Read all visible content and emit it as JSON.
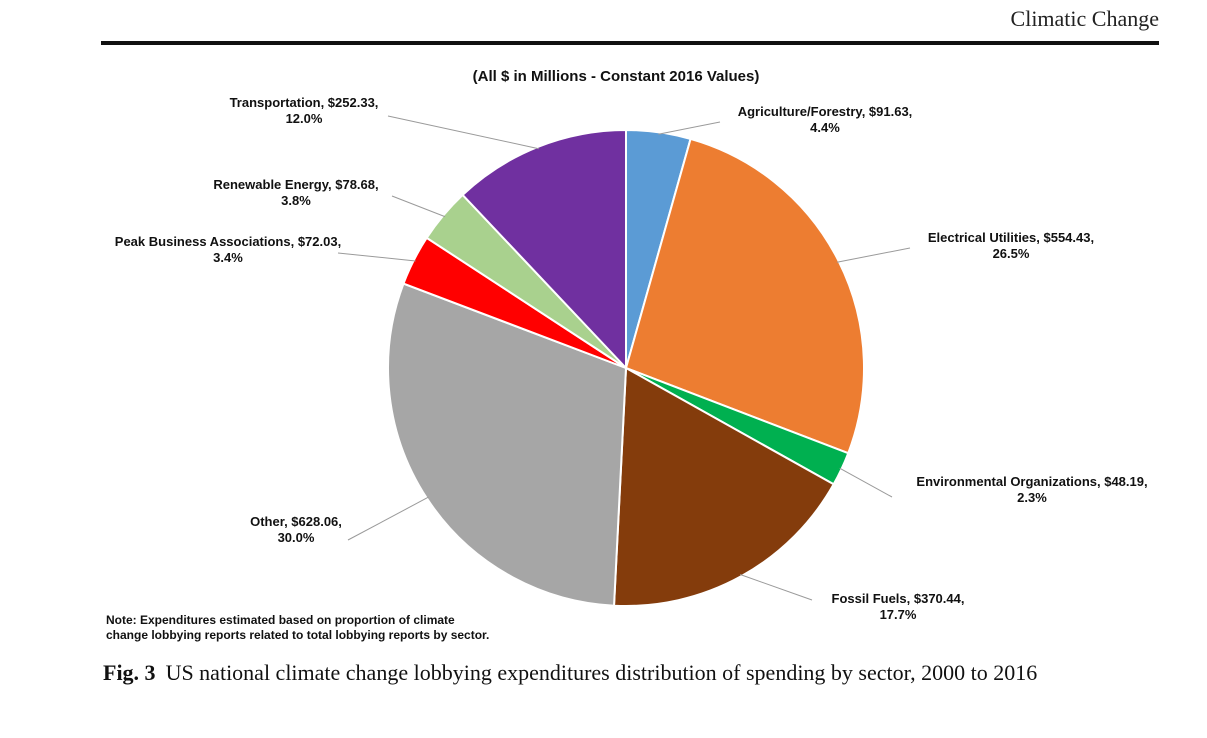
{
  "page": {
    "running_head": "Climatic Change"
  },
  "figure": {
    "caption_label": "Fig. 3",
    "caption_text": "US national climate change lobbying expenditures distribution of spending by sector, 2000 to 2016",
    "note_line1": "Note: Expenditures estimated based on proportion of climate",
    "note_line2": "change lobbying reports related to total lobbying reports by sector."
  },
  "chart_data": {
    "type": "pie",
    "title": "(All $ in Millions - Constant 2016 Values)",
    "slices": [
      {
        "label": "Agriculture/Forestry, $91.63,",
        "percent_label": "4.4%",
        "value": 91.63,
        "color": "#5B9BD5"
      },
      {
        "label": "Electrical Utilities, $554.43,",
        "percent_label": "26.5%",
        "value": 554.43,
        "color": "#ED7D31"
      },
      {
        "label": "Environmental Organizations, $48.19,",
        "percent_label": "2.3%",
        "value": 48.19,
        "color": "#00B050"
      },
      {
        "label": "Fossil Fuels, $370.44,",
        "percent_label": "17.7%",
        "value": 370.44,
        "color": "#843C0C"
      },
      {
        "label": "Other, $628.06,",
        "percent_label": "30.0%",
        "value": 628.06,
        "color": "#A6A6A6"
      },
      {
        "label": "Peak Business Associations, $72.03,",
        "percent_label": "3.4%",
        "value": 72.03,
        "color": "#FF0000"
      },
      {
        "label": "Renewable Energy, $78.68,",
        "percent_label": "3.8%",
        "value": 78.68,
        "color": "#A9D18E"
      },
      {
        "label": "Transportation, $252.33,",
        "percent_label": "12.0%",
        "value": 252.33,
        "color": "#7030A0"
      }
    ]
  }
}
